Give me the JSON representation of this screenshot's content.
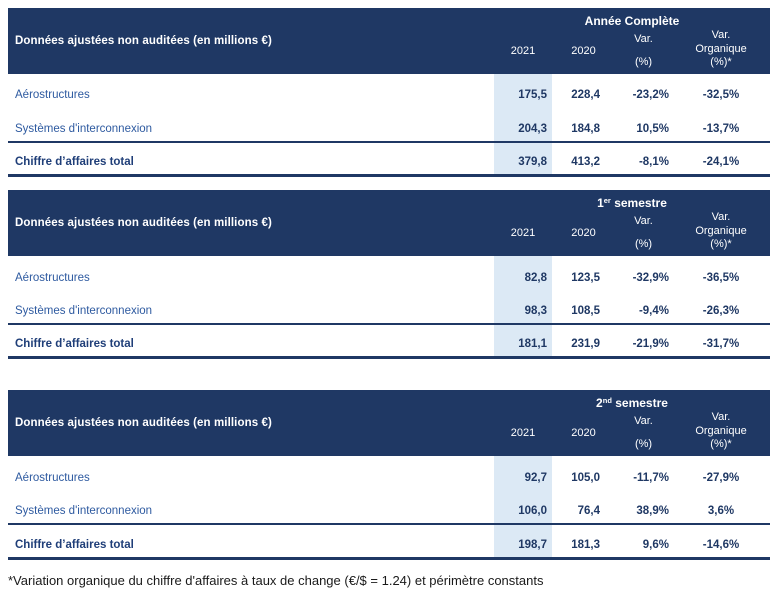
{
  "colors": {
    "header_bg": "#1f3864",
    "highlight_2021": "#dce9f5",
    "label_text": "#2e5aa0",
    "value_text": "#1f3864",
    "header_text": "#ffffff"
  },
  "common": {
    "row_header": "Données ajustées non auditées (en millions €)",
    "col_2021": "2021",
    "col_2020": "2020",
    "col_var_line1": "Var.",
    "col_var_line2": "(%)",
    "col_varorg_line1": "Var.",
    "col_varorg_line2": "Organique",
    "col_varorg_line3": "(%)*"
  },
  "tables": [
    {
      "period": {
        "pre": "Année Complète",
        "sup": "",
        "post": ""
      },
      "rows": [
        {
          "label": "Aérostructures",
          "y2021": "175,5",
          "y2020": "228,4",
          "var": "-23,2%",
          "var_org": "-32,5%"
        },
        {
          "label": "Systèmes d'interconnexion",
          "y2021": "204,3",
          "y2020": "184,8",
          "var": "10,5%",
          "var_org": "-13,7%"
        },
        {
          "label": "Chiffre d’affaires total",
          "y2021": "379,8",
          "y2020": "413,2",
          "var": "-8,1%",
          "var_org": "-24,1%"
        }
      ]
    },
    {
      "period": {
        "pre": "1",
        "sup": "er",
        "post": " semestre"
      },
      "rows": [
        {
          "label": "Aérostructures",
          "y2021": "82,8",
          "y2020": "123,5",
          "var": "-32,9%",
          "var_org": "-36,5%"
        },
        {
          "label": "Systèmes d'interconnexion",
          "y2021": "98,3",
          "y2020": "108,5",
          "var": "-9,4%",
          "var_org": "-26,3%"
        },
        {
          "label": "Chiffre d’affaires total",
          "y2021": "181,1",
          "y2020": "231,9",
          "var": "-21,9%",
          "var_org": "-31,7%"
        }
      ]
    },
    {
      "period": {
        "pre": "2",
        "sup": "nd",
        "post": " semestre"
      },
      "rows": [
        {
          "label": "Aérostructures",
          "y2021": "92,7",
          "y2020": "105,0",
          "var": "-11,7%",
          "var_org": "-27,9%"
        },
        {
          "label": "Systèmes d'interconnexion",
          "y2021": "106,0",
          "y2020": "76,4",
          "var": "38,9%",
          "var_org": "3,6%"
        },
        {
          "label": "Chiffre d’affaires total",
          "y2021": "198,7",
          "y2020": "181,3",
          "var": "9,6%",
          "var_org": "-14,6%"
        }
      ]
    }
  ],
  "footnote": "*Variation organique du chiffre d'affaires à taux de change (€/$ = 1.24) et périmètre constants"
}
